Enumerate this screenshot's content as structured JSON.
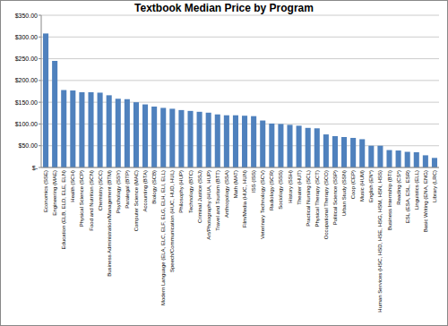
{
  "chart_data": {
    "type": "bar",
    "title": "Textbook Median Price by Program",
    "categories": [
      "Economics (SSE)",
      "Engineering (MAE)",
      "Education (ELB, ELD, ELE, ELN)",
      "Health (SCH)",
      "Physical Science (SCP)",
      "Food and Nutrition (SCN)",
      "Chemistry (SCC)",
      "Business Administration/Management (BTM)",
      "Psychology (SSY)",
      "Paralegal (BTP)",
      "Computer Science (MAC)",
      "Accounting (BTA)",
      "Biology (SCB)",
      "Modern Language (ELA, ELC, ELF, ELG, ELH, ELI, ELL)",
      "Speech/Communication (HUC, HUD, HUL)",
      "Philosophy (HUP)",
      "Technology (BTC)",
      "Criminal Justice (SSJ)",
      "Art/Photography (HUA, HUP)",
      "Travel and Tourism (BTT)",
      "Anthropology (SSA)",
      "Math (MAT)",
      "Film/Media (HUC, HUN)",
      "ISS (ISS)",
      "Veterinary Technology (SCV)",
      "Radiology (SCR)",
      "Sociology (SSS)",
      "History (SSH)",
      "Theater (HUT)",
      "Practical Nursing (SCL)",
      "Physical Therapy (SCT)",
      "Occupational Therapy (SCO)",
      "Political Science (SSP)",
      "Urban Study (SSN)",
      "Coop (CEP)",
      "Music (HUM)",
      "English (EN*)",
      "Human Services (HSC, HSD, HSE, HSG, HSM, HSN, HSS)",
      "Business Internship (BTI)",
      "Reading (CS*)",
      "ESL (ESA, ESL, ESR)",
      "Linguistics (ELL)",
      "Basic Writing (ENA, ENG)",
      "Library (LRC)"
    ],
    "values": [
      308,
      245,
      178,
      177,
      173,
      173,
      172,
      166,
      158,
      157,
      150,
      145,
      140,
      137,
      135,
      132,
      130,
      128,
      126,
      122,
      120,
      120,
      119,
      118,
      108,
      101,
      100,
      98,
      96,
      91,
      90,
      76,
      72,
      70,
      68,
      65,
      50,
      50,
      40,
      39,
      36,
      35,
      28,
      22
    ],
    "color": "#4f81bd",
    "ylim": [
      0,
      350
    ],
    "yticks": [
      {
        "value": 0,
        "label": "$-"
      },
      {
        "value": 50,
        "label": "$50.00"
      },
      {
        "value": 100,
        "label": "$100.00"
      },
      {
        "value": 150,
        "label": "$150.00"
      },
      {
        "value": 200,
        "label": "$200.00"
      },
      {
        "value": 250,
        "label": "$250.00"
      },
      {
        "value": 300,
        "label": "$300.00"
      },
      {
        "value": 350,
        "label": "$350.00"
      }
    ],
    "grid": true
  }
}
